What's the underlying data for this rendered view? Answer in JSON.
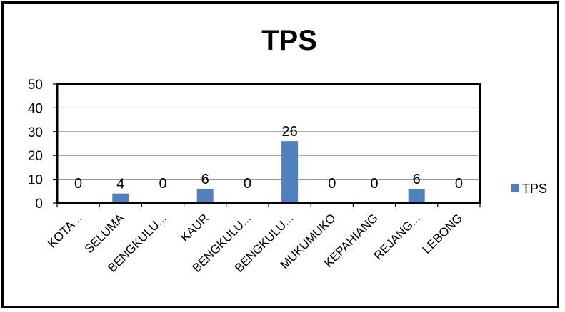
{
  "chart_data": {
    "type": "bar",
    "title": "TPS",
    "categories": [
      "KOTA...",
      "SELUMA",
      "BENGKULU...",
      "KAUR",
      "BENGKULU...",
      "BENGKULU...",
      "MUKUMUKO",
      "KEPAHIANG",
      "REJANG...",
      "LEBONG"
    ],
    "series": [
      {
        "name": "TPS",
        "values": [
          0,
          4,
          0,
          6,
          0,
          26,
          0,
          0,
          6,
          0
        ],
        "color": "#4F81BD"
      }
    ],
    "data_labels": [
      "0",
      "4",
      "0",
      "6",
      "0",
      "26",
      "0",
      "0",
      "6",
      "0"
    ],
    "y_ticks": [
      "0",
      "10",
      "20",
      "30",
      "40",
      "50"
    ],
    "ylim": [
      0,
      50
    ],
    "grid": true,
    "legend_position": "right"
  }
}
